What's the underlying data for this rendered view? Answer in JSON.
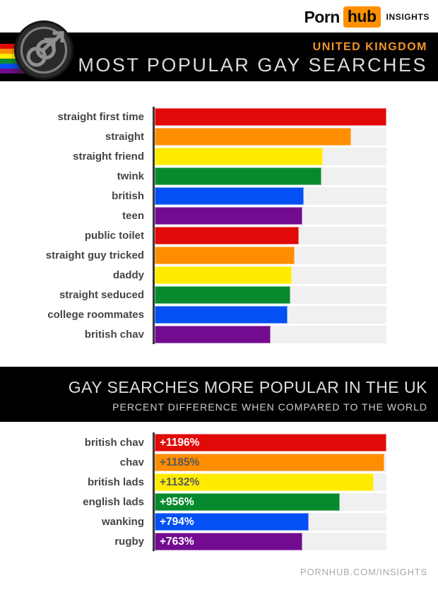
{
  "brand": {
    "logo_porn": "Porn",
    "logo_hub": "hub",
    "logo_suffix": "INSIGHTS",
    "hub_box_color": "#ff9000"
  },
  "header": {
    "region": "UNITED KINGDOM",
    "region_color": "#f0952e",
    "title": "MOST POPULAR GAY SEARCHES"
  },
  "section2": {
    "title": "GAY SEARCHES MORE POPULAR IN THE UK",
    "subtitle": "PERCENT DIFFERENCE WHEN COMPARED TO THE WORLD"
  },
  "footer": {
    "url_text": "PORNHUB.COM/INSIGHTS"
  },
  "palette": {
    "rainbow": [
      "#e20909",
      "#ff8d00",
      "#ffeb00",
      "#078a2e",
      "#0450f5",
      "#730b90"
    ],
    "track_gray": "#f0f0f0",
    "axis_dark": "#3a3a3a",
    "label_gray": "#454545"
  },
  "chart_data": [
    {
      "type": "bar",
      "orientation": "horizontal",
      "title": "MOST POPULAR GAY SEARCHES",
      "region": "UNITED KINGDOM",
      "categories": [
        "straight first time",
        "straight",
        "straight friend",
        "twink",
        "british",
        "teen",
        "public toilet",
        "straight guy tricked",
        "daddy",
        "straight seduced",
        "college roommates",
        "british chav"
      ],
      "bar_percent_of_max": [
        100,
        84.8,
        72.6,
        71.8,
        64.4,
        63.8,
        62.2,
        60.4,
        59.2,
        58.5,
        57.4,
        50.1
      ],
      "bar_colors": [
        "#e20909",
        "#ff8d00",
        "#ffeb00",
        "#078a2e",
        "#0450f5",
        "#730b90",
        "#e20909",
        "#ff8d00",
        "#ffeb00",
        "#078a2e",
        "#0450f5",
        "#730b90"
      ],
      "value_labels": null
    },
    {
      "type": "bar",
      "orientation": "horizontal",
      "title": "GAY SEARCHES MORE POPULAR IN THE UK",
      "subtitle": "PERCENT DIFFERENCE WHEN COMPARED TO THE WORLD",
      "categories": [
        "british chav",
        "chav",
        "british lads",
        "english lads",
        "wanking",
        "rugby"
      ],
      "values_percent_difference": [
        1196,
        1185,
        1132,
        956,
        794,
        763
      ],
      "value_labels": [
        "+1196%",
        "+1185%",
        "+1132%",
        "+956%",
        "+794%",
        "+763%"
      ],
      "bar_percent_of_max": [
        100,
        99.1,
        94.6,
        79.9,
        66.4,
        63.8
      ],
      "bar_colors": [
        "#e20909",
        "#ff8d00",
        "#ffeb00",
        "#078a2e",
        "#0450f5",
        "#730b90"
      ],
      "value_label_colors": [
        "#ffffff",
        "#58585a",
        "#58585a",
        "#ffffff",
        "#ffffff",
        "#ffffff"
      ]
    }
  ]
}
